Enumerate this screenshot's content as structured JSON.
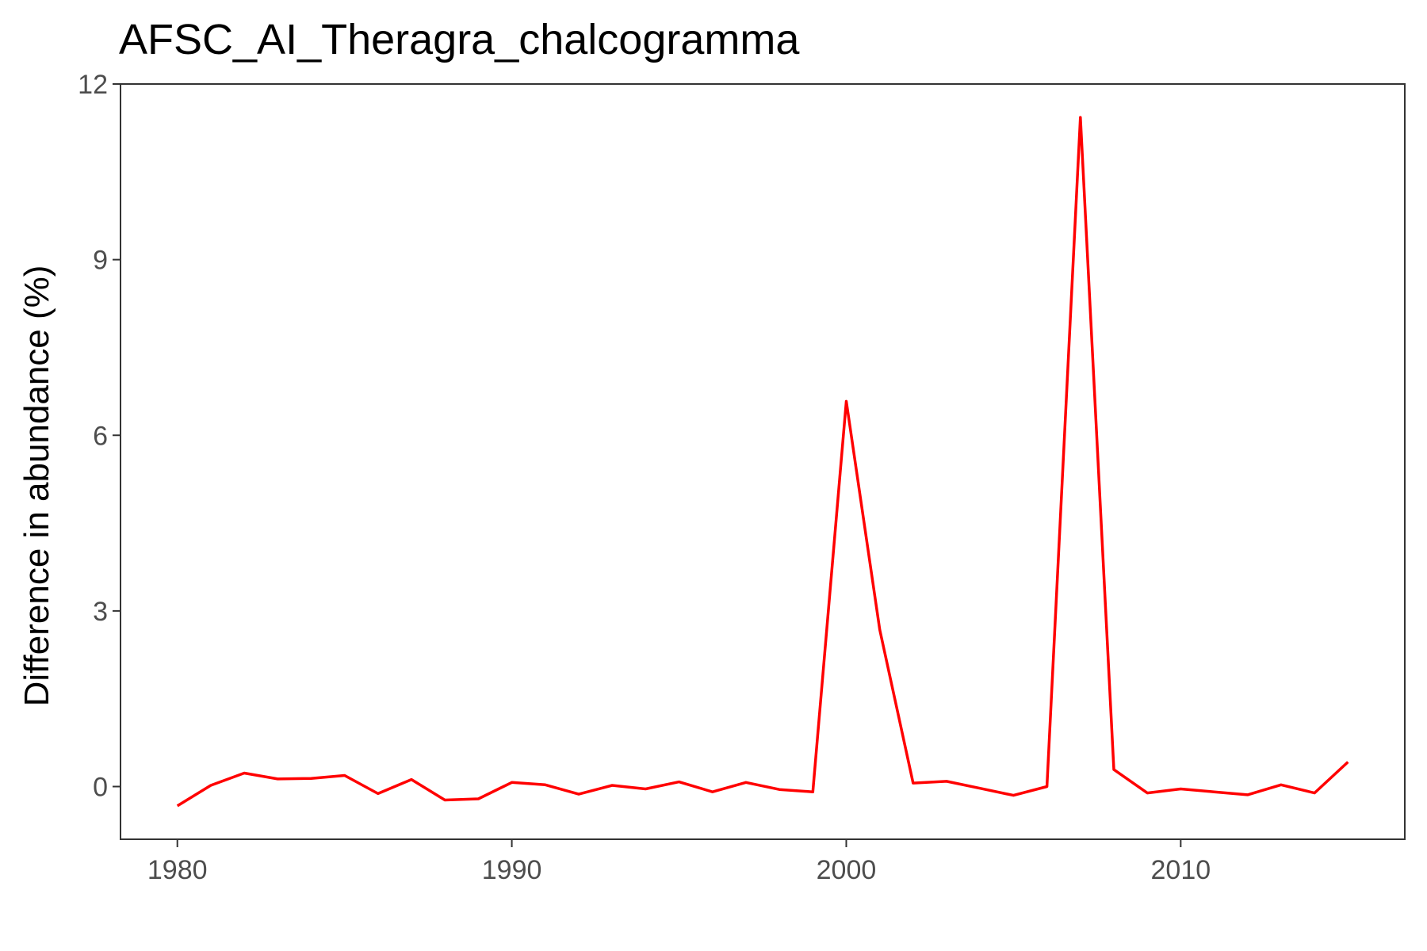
{
  "chart_data": {
    "type": "line",
    "title": "AFSC_AI_Theragra_chalcogramma",
    "xlabel": "",
    "ylabel": "Difference in abundance (%)",
    "xlim": [
      1978.3,
      2016.7
    ],
    "ylim": [
      -0.9,
      12.0
    ],
    "xticks": [
      1980,
      1990,
      2000,
      2010
    ],
    "yticks": [
      0,
      3,
      6,
      9,
      12
    ],
    "grid": false,
    "line_color": "#ff0000",
    "series": [
      {
        "x": [
          1980,
          1981,
          1982,
          1983,
          1984,
          1985,
          1986,
          1987,
          1988,
          1989,
          1990,
          1991,
          1992,
          1993,
          1994,
          1995,
          1996,
          1997,
          1998,
          1999,
          2000,
          2001,
          2002,
          2003,
          2004,
          2005,
          2006,
          2007,
          2008,
          2009,
          2010,
          2011,
          2012,
          2013,
          2014,
          2015
        ],
        "values": [
          -0.33,
          0.02,
          0.23,
          0.13,
          0.14,
          0.19,
          -0.12,
          0.12,
          -0.23,
          -0.21,
          0.07,
          0.03,
          -0.13,
          0.02,
          -0.04,
          0.08,
          -0.09,
          0.07,
          -0.05,
          -0.09,
          6.58,
          2.68,
          0.06,
          0.09,
          -0.03,
          -0.15,
          0.0,
          11.43,
          0.29,
          -0.11,
          -0.04,
          -0.09,
          -0.14,
          0.03,
          -0.11,
          0.42
        ]
      }
    ]
  }
}
